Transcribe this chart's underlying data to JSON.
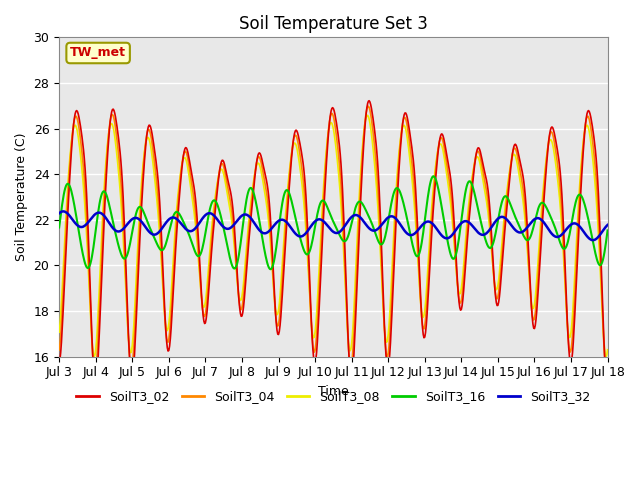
{
  "title": "Soil Temperature Set 3",
  "xlabel": "Time",
  "ylabel": "Soil Temperature (C)",
  "ylim": [
    16,
    30
  ],
  "xlim": [
    0,
    15
  ],
  "xtick_labels": [
    "Jul 3",
    "Jul 4",
    "Jul 5",
    "Jul 6",
    "Jul 7",
    "Jul 8",
    "Jul 9",
    "Jul 10",
    "Jul 11",
    "Jul 12",
    "Jul 13",
    "Jul 14",
    "Jul 15",
    "Jul 16",
    "Jul 17",
    "Jul 18"
  ],
  "annotation_text": "TW_met",
  "annotation_color": "#cc0000",
  "annotation_bg": "#ffffcc",
  "annotation_border": "#999900",
  "series_colors": {
    "SoilT3_02": "#dd0000",
    "SoilT3_04": "#ff8800",
    "SoilT3_08": "#eeee00",
    "SoilT3_16": "#00cc00",
    "SoilT3_32": "#0000cc"
  },
  "bg_color": "#e8e8e8",
  "grid_color": "#ffffff",
  "title_fontsize": 12,
  "axis_fontsize": 9,
  "tick_fontsize": 9,
  "legend_fontsize": 9
}
